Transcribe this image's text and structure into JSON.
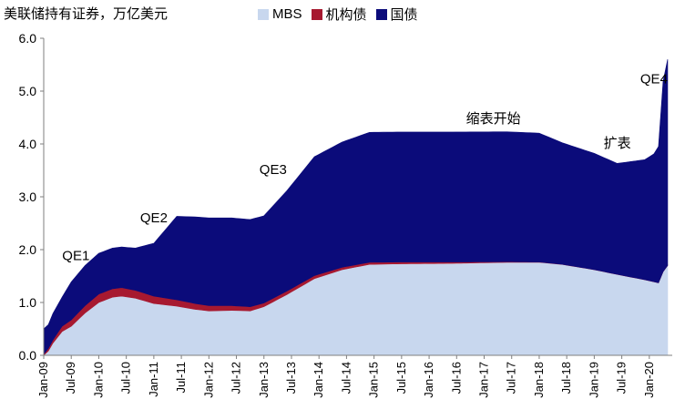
{
  "chart_data": {
    "type": "area",
    "stacked": true,
    "title": "美联储持有证券，万亿美元",
    "ylim": [
      0,
      6
    ],
    "yticks": [
      "0.0",
      "1.0",
      "2.0",
      "3.0",
      "4.0",
      "5.0",
      "6.0"
    ],
    "x_start": "2009-01",
    "x_end": "2020-06",
    "xticks": [
      "Jan-09",
      "Jul-09",
      "Jan-10",
      "Jul-10",
      "Jan-11",
      "Jul-11",
      "Jan-12",
      "Jul-12",
      "Jan-13",
      "Jul-13",
      "Jan-14",
      "Jul-14",
      "Jan-15",
      "Jul-15",
      "Jan-16",
      "Jul-16",
      "Jan-17",
      "Jul-17",
      "Jan-18",
      "Jul-18",
      "Jan-19",
      "Jul-19",
      "Jan-20"
    ],
    "legend_position": "top",
    "series": [
      {
        "name": "MBS",
        "color": "#c8d7ee",
        "points": [
          [
            "2009-01",
            0.0
          ],
          [
            "2009-02",
            0.08
          ],
          [
            "2009-03",
            0.23
          ],
          [
            "2009-05",
            0.45
          ],
          [
            "2009-07",
            0.55
          ],
          [
            "2009-10",
            0.8
          ],
          [
            "2010-01",
            1.0
          ],
          [
            "2010-04",
            1.1
          ],
          [
            "2010-06",
            1.12
          ],
          [
            "2010-09",
            1.08
          ],
          [
            "2011-01",
            0.98
          ],
          [
            "2011-06",
            0.93
          ],
          [
            "2011-10",
            0.87
          ],
          [
            "2012-01",
            0.84
          ],
          [
            "2012-06",
            0.85
          ],
          [
            "2012-10",
            0.84
          ],
          [
            "2013-01",
            0.92
          ],
          [
            "2013-06",
            1.15
          ],
          [
            "2013-12",
            1.45
          ],
          [
            "2014-06",
            1.62
          ],
          [
            "2014-12",
            1.72
          ],
          [
            "2015-06",
            1.73
          ],
          [
            "2016-06",
            1.74
          ],
          [
            "2017-06",
            1.76
          ],
          [
            "2018-01",
            1.76
          ],
          [
            "2018-06",
            1.72
          ],
          [
            "2019-01",
            1.62
          ],
          [
            "2019-06",
            1.53
          ],
          [
            "2019-12",
            1.43
          ],
          [
            "2020-02",
            1.39
          ],
          [
            "2020-03",
            1.37
          ],
          [
            "2020-04",
            1.58
          ],
          [
            "2020-05",
            1.7
          ]
        ]
      },
      {
        "name": "机构债",
        "color": "#a71930",
        "points": [
          [
            "2009-01",
            0.02
          ],
          [
            "2009-02",
            0.05
          ],
          [
            "2009-03",
            0.06
          ],
          [
            "2009-05",
            0.1
          ],
          [
            "2009-07",
            0.12
          ],
          [
            "2009-10",
            0.14
          ],
          [
            "2010-01",
            0.16
          ],
          [
            "2010-06",
            0.16
          ],
          [
            "2010-09",
            0.15
          ],
          [
            "2011-01",
            0.14
          ],
          [
            "2011-06",
            0.12
          ],
          [
            "2011-10",
            0.11
          ],
          [
            "2012-01",
            0.1
          ],
          [
            "2012-06",
            0.09
          ],
          [
            "2012-10",
            0.08
          ],
          [
            "2013-01",
            0.07
          ],
          [
            "2013-06",
            0.065
          ],
          [
            "2013-12",
            0.058
          ],
          [
            "2014-06",
            0.045
          ],
          [
            "2014-12",
            0.04
          ],
          [
            "2015-06",
            0.035
          ],
          [
            "2016-06",
            0.025
          ],
          [
            "2017-06",
            0.01
          ],
          [
            "2018-01",
            0.005
          ],
          [
            "2018-06",
            0.003
          ],
          [
            "2019-01",
            0.002
          ],
          [
            "2019-06",
            0.002
          ],
          [
            "2019-12",
            0.002
          ],
          [
            "2020-02",
            0.002
          ],
          [
            "2020-03",
            0.002
          ],
          [
            "2020-04",
            0.002
          ],
          [
            "2020-05",
            0.002
          ]
        ]
      },
      {
        "name": "国债",
        "color": "#0b0b7a",
        "points": [
          [
            "2009-01",
            0.48
          ],
          [
            "2009-02",
            0.45
          ],
          [
            "2009-03",
            0.5
          ],
          [
            "2009-05",
            0.55
          ],
          [
            "2009-07",
            0.72
          ],
          [
            "2009-10",
            0.76
          ],
          [
            "2010-01",
            0.77
          ],
          [
            "2010-06",
            0.77
          ],
          [
            "2010-09",
            0.8
          ],
          [
            "2011-01",
            1.0
          ],
          [
            "2011-06",
            1.58
          ],
          [
            "2011-10",
            1.64
          ],
          [
            "2012-01",
            1.66
          ],
          [
            "2012-06",
            1.66
          ],
          [
            "2012-10",
            1.65
          ],
          [
            "2013-01",
            1.65
          ],
          [
            "2013-06",
            1.9
          ],
          [
            "2013-12",
            2.25
          ],
          [
            "2014-06",
            2.37
          ],
          [
            "2014-12",
            2.46
          ],
          [
            "2015-06",
            2.46
          ],
          [
            "2016-06",
            2.46
          ],
          [
            "2017-06",
            2.46
          ],
          [
            "2018-01",
            2.44
          ],
          [
            "2018-06",
            2.3
          ],
          [
            "2019-01",
            2.2
          ],
          [
            "2019-06",
            2.1
          ],
          [
            "2019-12",
            2.27
          ],
          [
            "2020-02",
            2.42
          ],
          [
            "2020-03",
            2.58
          ],
          [
            "2020-04",
            3.6
          ],
          [
            "2020-05",
            3.9
          ]
        ]
      }
    ],
    "annotations": [
      {
        "label": "QE1",
        "x": "2009-08",
        "y": 1.8
      },
      {
        "label": "QE2",
        "x": "2011-01",
        "y": 2.52
      },
      {
        "label": "QE3",
        "x": "2013-03",
        "y": 3.43
      },
      {
        "label": "缩表开始",
        "x": "2017-03",
        "y": 4.4
      },
      {
        "label": "扩表",
        "x": "2019-06",
        "y": 3.93
      },
      {
        "label": "QE4",
        "x": "2020-02",
        "y": 5.15
      }
    ]
  }
}
